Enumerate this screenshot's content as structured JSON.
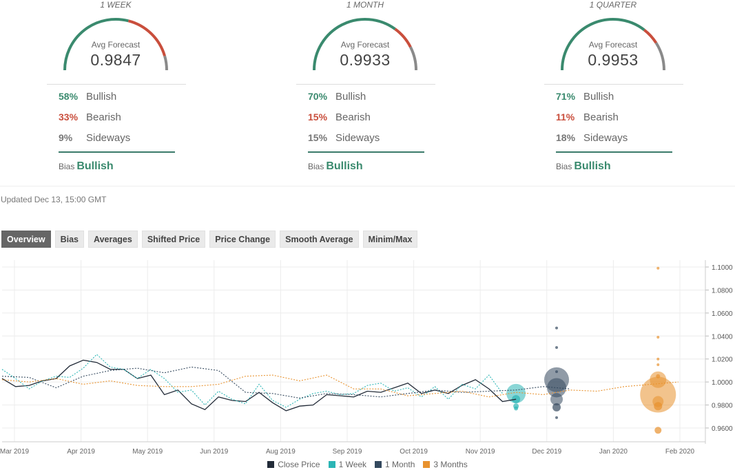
{
  "panels": [
    {
      "title": "1 WEEK",
      "avg_label": "Avg Forecast",
      "avg_value": "0.9847",
      "bullish_pct": "58%",
      "bullish_label": "Bullish",
      "bearish_pct": "33%",
      "bearish_label": "Bearish",
      "sideways_pct": "9%",
      "sideways_label": "Sideways",
      "bias_label": "Bias",
      "bias_value": "Bullish",
      "gauge": {
        "bullish": 58,
        "bearish": 33,
        "sideways": 9
      }
    },
    {
      "title": "1 MONTH",
      "avg_label": "Avg Forecast",
      "avg_value": "0.9933",
      "bullish_pct": "70%",
      "bullish_label": "Bullish",
      "bearish_pct": "15%",
      "bearish_label": "Bearish",
      "sideways_pct": "15%",
      "sideways_label": "Sideways",
      "bias_label": "Bias",
      "bias_value": "Bullish",
      "gauge": {
        "bullish": 70,
        "bearish": 15,
        "sideways": 15
      }
    },
    {
      "title": "1 QUARTER",
      "avg_label": "Avg Forecast",
      "avg_value": "0.9953",
      "bullish_pct": "71%",
      "bullish_label": "Bullish",
      "bearish_pct": "11%",
      "bearish_label": "Bearish",
      "sideways_pct": "18%",
      "sideways_label": "Sideways",
      "bias_label": "Bias",
      "bias_value": "Bullish",
      "gauge": {
        "bullish": 71,
        "bearish": 11,
        "sideways": 18
      }
    }
  ],
  "colors": {
    "bullish": "#3a8a6e",
    "bearish": "#c94e3c",
    "sideways": "#8a8a8a",
    "close_price": "#222b38",
    "week": "#2bb5b5",
    "month": "#34495e",
    "months3": "#e8922e"
  },
  "updated": "Updated Dec 13, 15:00 GMT",
  "tabs": [
    "Overview",
    "Bias",
    "Averages",
    "Shifted Price",
    "Price Change",
    "Smooth Average",
    "Minim/Max"
  ],
  "chart_data": {
    "type": "line",
    "x_ticks": [
      "Mar 2019",
      "Apr 2019",
      "May 2019",
      "Jun 2019",
      "Aug 2019",
      "Sep 2019",
      "Oct 2019",
      "Nov 2019",
      "Dec 2019",
      "Jan 2020",
      "Feb 2020"
    ],
    "y_ticks": [
      "1.1000",
      "1.0800",
      "1.0600",
      "1.0400",
      "1.0200",
      "1.0000",
      "0.9800",
      "0.9600"
    ],
    "ylim": [
      0.948,
      1.106
    ],
    "xlim": [
      0,
      52
    ],
    "series": [
      {
        "name": "Close Price",
        "style": "solid",
        "x": [
          0,
          1,
          2,
          3,
          4,
          5,
          6,
          7,
          8,
          9,
          10,
          11,
          12,
          13,
          14,
          15,
          16,
          17,
          18,
          19,
          20,
          21,
          22,
          23,
          24,
          25,
          26,
          27,
          28,
          29,
          30,
          31,
          32,
          33,
          34,
          35,
          36,
          37,
          38
        ],
        "values": [
          1.003,
          0.996,
          0.997,
          1.001,
          1.003,
          1.014,
          1.019,
          1.017,
          1.011,
          1.011,
          1.003,
          1.006,
          0.989,
          0.993,
          0.981,
          0.976,
          0.987,
          0.984,
          0.983,
          0.991,
          0.982,
          0.975,
          0.979,
          0.98,
          0.989,
          0.988,
          0.987,
          0.992,
          0.991,
          0.995,
          0.999,
          0.99,
          0.993,
          0.99,
          0.997,
          1.002,
          0.994,
          0.983,
          0.985
        ]
      },
      {
        "name": "1 Week",
        "style": "dotted",
        "x": [
          0,
          1,
          2,
          3,
          4,
          5,
          6,
          7,
          8,
          9,
          10,
          11,
          12,
          13,
          14,
          15,
          16,
          17,
          18,
          19,
          20,
          21,
          22,
          23,
          24,
          25,
          26,
          27,
          28,
          29,
          30,
          31,
          32,
          33,
          34,
          35,
          36,
          37
        ],
        "values": [
          1.011,
          1.003,
          0.994,
          1.001,
          1.005,
          1.004,
          1.012,
          1.024,
          1.013,
          1.011,
          1.003,
          1.011,
          1.003,
          0.991,
          0.993,
          0.98,
          0.992,
          0.985,
          0.981,
          0.998,
          0.984,
          0.978,
          0.985,
          0.99,
          0.992,
          0.989,
          0.99,
          0.997,
          0.999,
          0.992,
          0.995,
          0.987,
          0.996,
          0.985,
          0.998,
          0.994,
          1.006,
          0.99
        ]
      },
      {
        "name": "1 Month",
        "style": "dotted",
        "x": [
          0,
          2,
          4,
          6,
          8,
          10,
          12,
          14,
          16,
          18,
          20,
          22,
          24,
          26,
          28,
          30,
          32,
          34,
          36,
          38,
          40,
          42
        ],
        "values": [
          1.005,
          1.004,
          0.995,
          1.005,
          1.01,
          1.012,
          1.008,
          1.013,
          1.01,
          0.991,
          0.99,
          0.986,
          0.99,
          0.989,
          0.987,
          0.99,
          0.993,
          0.991,
          0.992,
          0.993,
          0.996,
          0.994
        ]
      },
      {
        "name": "3 Months",
        "style": "dotted",
        "x": [
          0,
          2,
          4,
          6,
          8,
          10,
          12,
          14,
          16,
          18,
          20,
          22,
          24,
          26,
          28,
          30,
          32,
          34,
          36,
          38,
          40,
          42,
          44,
          46,
          48,
          50
        ],
        "values": [
          1.002,
          1.0,
          1.003,
          0.998,
          1.001,
          0.997,
          0.996,
          0.996,
          0.998,
          1.005,
          1.006,
          1.001,
          1.006,
          0.994,
          0.994,
          0.988,
          0.99,
          0.992,
          0.987,
          0.991,
          0.989,
          0.993,
          0.992,
          0.996,
          0.998,
          1.0
        ]
      }
    ],
    "forecast_bubbles": [
      {
        "series": "1 Week",
        "x": 38,
        "points": [
          [
            0.99,
            14
          ],
          [
            0.985,
            6
          ],
          [
            0.979,
            4
          ],
          [
            0.977,
            3
          ]
        ]
      },
      {
        "series": "1 Month",
        "x": 41,
        "points": [
          [
            1.002,
            18
          ],
          [
            0.995,
            14
          ],
          [
            0.985,
            9
          ],
          [
            0.978,
            6
          ],
          [
            1.047,
            2
          ],
          [
            1.03,
            2
          ],
          [
            0.969,
            2
          ],
          [
            1.009,
            2
          ]
        ]
      },
      {
        "series": "3 Months",
        "x": 48.5,
        "points": [
          [
            0.989,
            26
          ],
          [
            1.002,
            12
          ],
          [
            0.983,
            8
          ],
          [
            0.979,
            6
          ],
          [
            1.005,
            3
          ],
          [
            1.015,
            2
          ],
          [
            1.02,
            2
          ],
          [
            1.039,
            2
          ],
          [
            1.099,
            2
          ],
          [
            0.958,
            5
          ]
        ]
      }
    ],
    "grid": true,
    "legend_position": "bottom-center"
  }
}
